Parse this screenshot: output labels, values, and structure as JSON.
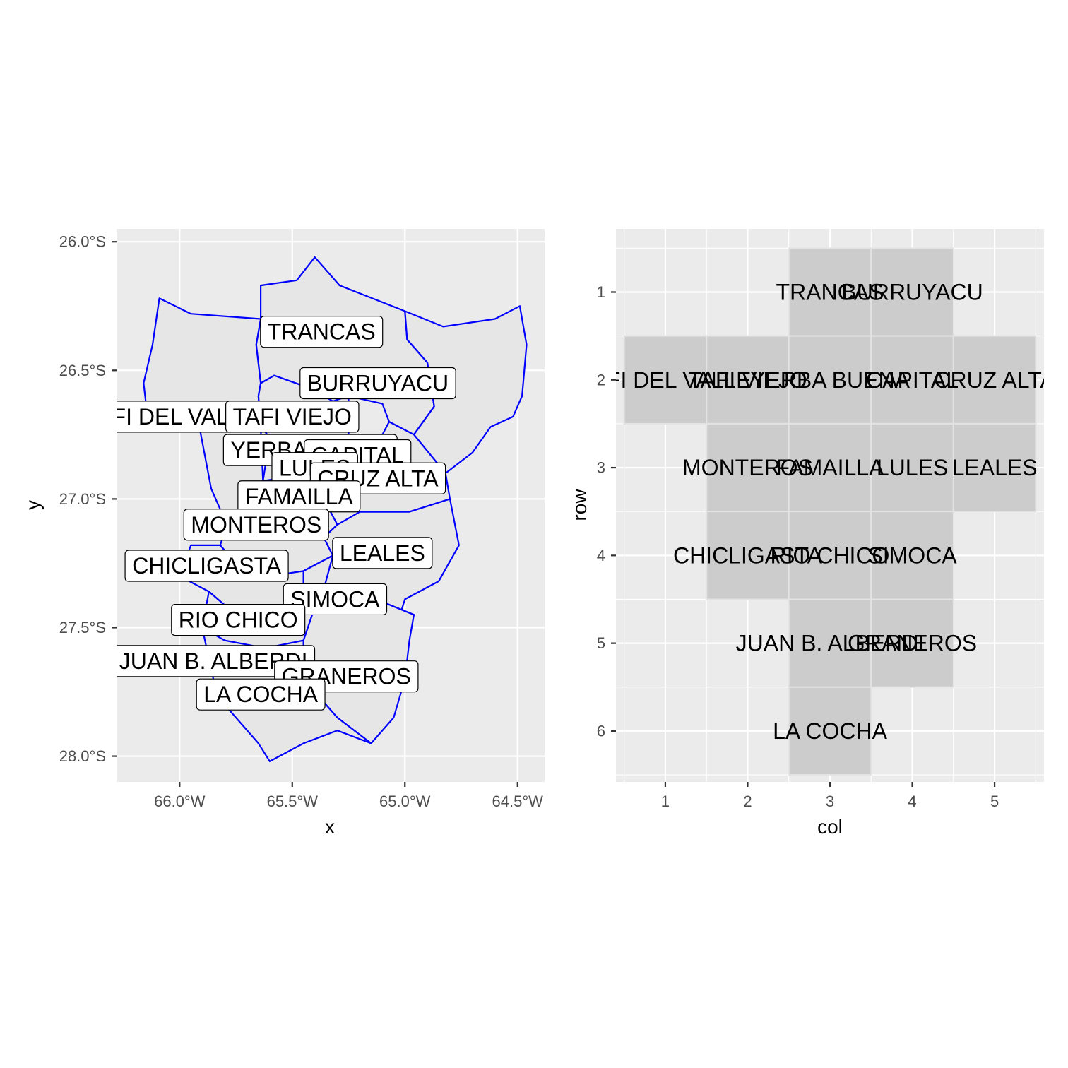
{
  "chart_data": [
    {
      "type": "map",
      "xlabel": "x",
      "ylabel": "y",
      "xlim": [
        -66.28,
        -64.38
      ],
      "ylim": [
        -28.1,
        -25.95
      ],
      "x_ticks": [
        -66.0,
        -65.5,
        -65.0,
        -64.5
      ],
      "x_tick_labels": [
        "66.0°W",
        "65.5°W",
        "65.0°W",
        "64.5°W"
      ],
      "y_ticks": [
        -26.0,
        -26.5,
        -27.0,
        -27.5,
        -28.0
      ],
      "y_tick_labels": [
        "26.0°S",
        "26.5°S",
        "27.0°S",
        "27.5°S",
        "28.0°S"
      ],
      "colors": {
        "panel": "#ebebeb",
        "grid": "#ffffff",
        "fill": "#e6e6e6",
        "border": "#0000ff"
      },
      "regions": [
        {
          "name": "TRANCAS",
          "label": [
            -65.37,
            -26.35
          ],
          "boundary": [
            [
              -65.64,
              -26.17
            ],
            [
              -65.48,
              -26.15
            ],
            [
              -65.4,
              -26.06
            ],
            [
              -65.29,
              -26.17
            ],
            [
              -65.0,
              -26.27
            ],
            [
              -64.99,
              -26.38
            ],
            [
              -64.9,
              -26.47
            ],
            [
              -64.87,
              -26.64
            ],
            [
              -64.96,
              -26.75
            ],
            [
              -65.07,
              -26.7
            ],
            [
              -65.1,
              -26.63
            ],
            [
              -65.25,
              -26.6
            ],
            [
              -65.42,
              -26.57
            ],
            [
              -65.58,
              -26.52
            ],
            [
              -65.64,
              -26.55
            ],
            [
              -65.66,
              -26.4
            ],
            [
              -65.64,
              -26.3
            ]
          ]
        },
        {
          "name": "BURRUYACU",
          "label": [
            -65.12,
            -26.55
          ],
          "boundary": [
            [
              -65.0,
              -26.27
            ],
            [
              -64.83,
              -26.33
            ],
            [
              -64.6,
              -26.3
            ],
            [
              -64.49,
              -26.25
            ],
            [
              -64.46,
              -26.4
            ],
            [
              -64.48,
              -26.6
            ],
            [
              -64.52,
              -26.68
            ],
            [
              -64.62,
              -26.72
            ],
            [
              -64.7,
              -26.82
            ],
            [
              -64.82,
              -26.9
            ],
            [
              -64.96,
              -26.75
            ],
            [
              -64.87,
              -26.64
            ],
            [
              -64.9,
              -26.47
            ],
            [
              -64.99,
              -26.38
            ]
          ]
        },
        {
          "name": "TAFI DEL VALLE",
          "label": [
            -66.04,
            -26.68
          ],
          "boundary": [
            [
              -66.09,
              -26.22
            ],
            [
              -66.12,
              -26.4
            ],
            [
              -66.16,
              -26.55
            ],
            [
              -66.14,
              -26.7
            ],
            [
              -66.0,
              -26.68
            ],
            [
              -65.91,
              -26.73
            ],
            [
              -65.86,
              -26.96
            ],
            [
              -65.79,
              -27.1
            ],
            [
              -65.68,
              -27.05
            ],
            [
              -65.63,
              -26.93
            ],
            [
              -65.64,
              -26.72
            ],
            [
              -65.65,
              -26.6
            ],
            [
              -65.64,
              -26.55
            ],
            [
              -65.66,
              -26.4
            ],
            [
              -65.64,
              -26.3
            ],
            [
              -65.95,
              -26.28
            ]
          ]
        },
        {
          "name": "TAFI VIEJO",
          "label": [
            -65.5,
            -26.68
          ],
          "boundary": [
            [
              -65.64,
              -26.55
            ],
            [
              -65.58,
              -26.52
            ],
            [
              -65.42,
              -26.57
            ],
            [
              -65.32,
              -26.62
            ],
            [
              -65.25,
              -26.6
            ],
            [
              -65.25,
              -26.78
            ],
            [
              -65.4,
              -26.82
            ],
            [
              -65.5,
              -26.8
            ],
            [
              -65.6,
              -26.76
            ],
            [
              -65.64,
              -26.72
            ],
            [
              -65.65,
              -26.6
            ]
          ]
        },
        {
          "name": "YERBA BUENA",
          "label": [
            -65.42,
            -26.81
          ],
          "boundary": [
            [
              -65.6,
              -26.76
            ],
            [
              -65.5,
              -26.8
            ],
            [
              -65.4,
              -26.82
            ],
            [
              -65.38,
              -26.92
            ],
            [
              -65.48,
              -26.94
            ],
            [
              -65.55,
              -26.92
            ],
            [
              -65.63,
              -26.93
            ]
          ]
        },
        {
          "name": "CAPITAL",
          "label": [
            -65.21,
            -26.83
          ],
          "boundary": [
            [
              -65.25,
              -26.78
            ],
            [
              -65.4,
              -26.82
            ],
            [
              -65.38,
              -26.92
            ],
            [
              -65.28,
              -26.9
            ],
            [
              -65.22,
              -26.88
            ],
            [
              -65.2,
              -26.84
            ]
          ]
        },
        {
          "name": "LULES",
          "label": [
            -65.4,
            -26.88
          ],
          "boundary": [
            [
              -65.63,
              -26.93
            ],
            [
              -65.55,
              -26.92
            ],
            [
              -65.48,
              -26.94
            ],
            [
              -65.38,
              -26.92
            ],
            [
              -65.36,
              -27.0
            ],
            [
              -65.45,
              -27.02
            ],
            [
              -65.58,
              -27.0
            ],
            [
              -65.68,
              -27.05
            ]
          ]
        },
        {
          "name": "CRUZ ALTA",
          "label": [
            -65.12,
            -26.92
          ],
          "boundary": [
            [
              -65.2,
              -26.84
            ],
            [
              -65.22,
              -26.88
            ],
            [
              -65.28,
              -26.9
            ],
            [
              -65.38,
              -26.92
            ],
            [
              -65.36,
              -27.0
            ],
            [
              -65.2,
              -27.05
            ],
            [
              -64.98,
              -27.05
            ],
            [
              -64.8,
              -27.0
            ],
            [
              -64.82,
              -26.9
            ],
            [
              -64.96,
              -26.75
            ],
            [
              -65.07,
              -26.7
            ],
            [
              -65.1,
              -26.75
            ]
          ]
        },
        {
          "name": "FAMAILLA",
          "label": [
            -65.47,
            -26.99
          ],
          "boundary": [
            [
              -65.68,
              -27.05
            ],
            [
              -65.58,
              -27.0
            ],
            [
              -65.45,
              -27.02
            ],
            [
              -65.36,
              -27.0
            ],
            [
              -65.3,
              -27.1
            ],
            [
              -65.36,
              -27.15
            ],
            [
              -65.5,
              -27.12
            ],
            [
              -65.6,
              -27.15
            ]
          ]
        },
        {
          "name": "MONTEROS",
          "label": [
            -65.66,
            -27.1
          ],
          "boundary": [
            [
              -65.79,
              -27.1
            ],
            [
              -65.68,
              -27.05
            ],
            [
              -65.6,
              -27.15
            ],
            [
              -65.5,
              -27.12
            ],
            [
              -65.36,
              -27.15
            ],
            [
              -65.32,
              -27.22
            ],
            [
              -65.45,
              -27.28
            ],
            [
              -65.6,
              -27.3
            ],
            [
              -65.75,
              -27.25
            ],
            [
              -65.82,
              -27.18
            ]
          ]
        },
        {
          "name": "LEALES",
          "label": [
            -65.1,
            -27.21
          ],
          "boundary": [
            [
              -65.36,
              -27.15
            ],
            [
              -65.3,
              -27.1
            ],
            [
              -65.2,
              -27.05
            ],
            [
              -64.98,
              -27.05
            ],
            [
              -64.8,
              -27.0
            ],
            [
              -64.76,
              -27.18
            ],
            [
              -64.85,
              -27.32
            ],
            [
              -65.0,
              -27.39
            ],
            [
              -65.04,
              -27.5
            ],
            [
              -65.05,
              -27.64
            ],
            [
              -65.2,
              -27.6
            ],
            [
              -65.32,
              -27.5
            ],
            [
              -65.36,
              -27.35
            ],
            [
              -65.32,
              -27.22
            ]
          ]
        },
        {
          "name": "CHICLIGASTA",
          "label": [
            -65.88,
            -27.26
          ],
          "boundary": [
            [
              -65.82,
              -27.18
            ],
            [
              -65.75,
              -27.25
            ],
            [
              -65.6,
              -27.3
            ],
            [
              -65.45,
              -27.28
            ],
            [
              -65.45,
              -27.4
            ],
            [
              -65.6,
              -27.45
            ],
            [
              -65.75,
              -27.45
            ],
            [
              -65.87,
              -27.36
            ],
            [
              -66.0,
              -27.3
            ],
            [
              -65.95,
              -27.18
            ]
          ]
        },
        {
          "name": "SIMOCA",
          "label": [
            -65.31,
            -27.39
          ],
          "boundary": [
            [
              -65.45,
              -27.28
            ],
            [
              -65.32,
              -27.22
            ],
            [
              -65.36,
              -27.35
            ],
            [
              -65.32,
              -27.5
            ],
            [
              -65.2,
              -27.6
            ],
            [
              -65.05,
              -27.64
            ],
            [
              -65.0,
              -27.5
            ],
            [
              -64.96,
              -27.45
            ],
            [
              -65.1,
              -27.4
            ],
            [
              -65.25,
              -27.35
            ],
            [
              -65.4,
              -27.42
            ],
            [
              -65.45,
              -27.4
            ]
          ]
        },
        {
          "name": "RIO CHICO",
          "label": [
            -65.74,
            -27.47
          ],
          "boundary": [
            [
              -65.87,
              -27.36
            ],
            [
              -65.75,
              -27.45
            ],
            [
              -65.6,
              -27.45
            ],
            [
              -65.45,
              -27.4
            ],
            [
              -65.4,
              -27.42
            ],
            [
              -65.45,
              -27.55
            ],
            [
              -65.62,
              -27.58
            ],
            [
              -65.8,
              -27.55
            ],
            [
              -65.9,
              -27.5
            ]
          ]
        },
        {
          "name": "JUAN B. ALBERDI",
          "label": [
            -65.85,
            -27.63
          ],
          "boundary": [
            [
              -65.9,
              -27.5
            ],
            [
              -65.8,
              -27.55
            ],
            [
              -65.62,
              -27.58
            ],
            [
              -65.45,
              -27.55
            ],
            [
              -65.45,
              -27.7
            ],
            [
              -65.62,
              -27.78
            ],
            [
              -65.8,
              -27.8
            ],
            [
              -65.85,
              -27.7
            ]
          ]
        },
        {
          "name": "GRANEROS",
          "label": [
            -65.26,
            -27.69
          ],
          "boundary": [
            [
              -65.45,
              -27.55
            ],
            [
              -65.4,
              -27.42
            ],
            [
              -65.25,
              -27.35
            ],
            [
              -65.1,
              -27.4
            ],
            [
              -64.96,
              -27.45
            ],
            [
              -64.98,
              -27.55
            ],
            [
              -65.0,
              -27.7
            ],
            [
              -65.05,
              -27.85
            ],
            [
              -65.15,
              -27.95
            ],
            [
              -65.3,
              -27.85
            ],
            [
              -65.45,
              -27.7
            ]
          ]
        },
        {
          "name": "LA COCHA",
          "label": [
            -65.64,
            -27.76
          ],
          "boundary": [
            [
              -65.8,
              -27.8
            ],
            [
              -65.62,
              -27.78
            ],
            [
              -65.45,
              -27.7
            ],
            [
              -65.3,
              -27.85
            ],
            [
              -65.15,
              -27.95
            ],
            [
              -65.3,
              -27.9
            ],
            [
              -65.45,
              -27.95
            ],
            [
              -65.6,
              -28.02
            ],
            [
              -65.65,
              -27.95
            ],
            [
              -65.72,
              -27.88
            ]
          ]
        }
      ]
    },
    {
      "type": "tile",
      "xlabel": "col",
      "ylabel": "row",
      "xlim": [
        0.4,
        5.6
      ],
      "ylim": [
        6.58,
        0.28
      ],
      "x_ticks": [
        1,
        2,
        3,
        4,
        5
      ],
      "x_tick_labels": [
        "1",
        "2",
        "3",
        "4",
        "5"
      ],
      "y_ticks": [
        1,
        2,
        3,
        4,
        5,
        6
      ],
      "y_tick_labels": [
        "1",
        "2",
        "3",
        "4",
        "5",
        "6"
      ],
      "colors": {
        "panel": "#ebebeb",
        "grid": "#ffffff",
        "tile": "#cccccc",
        "tile_border": "#e3e3e3"
      },
      "tiles": [
        {
          "name": "TRANCAS",
          "col": 3,
          "row": 1
        },
        {
          "name": "BURRUYACU",
          "col": 4,
          "row": 1
        },
        {
          "name": "TAFI DEL VALLE",
          "col": 1,
          "row": 2
        },
        {
          "name": "TAFI VIEJO",
          "col": 2,
          "row": 2
        },
        {
          "name": "YERBA BUENA",
          "col": 3,
          "row": 2
        },
        {
          "name": "CAPITAL",
          "col": 4,
          "row": 2
        },
        {
          "name": "CRUZ ALTA",
          "col": 5,
          "row": 2
        },
        {
          "name": "MONTEROS",
          "col": 2,
          "row": 3
        },
        {
          "name": "FAMAILLA",
          "col": 3,
          "row": 3
        },
        {
          "name": "LULES",
          "col": 4,
          "row": 3
        },
        {
          "name": "LEALES",
          "col": 5,
          "row": 3
        },
        {
          "name": "CHICLIGASTA",
          "col": 2,
          "row": 4
        },
        {
          "name": "RIO CHICO",
          "col": 3,
          "row": 4
        },
        {
          "name": "SIMOCA",
          "col": 4,
          "row": 4
        },
        {
          "name": "JUAN B. ALBERDI",
          "col": 3,
          "row": 5
        },
        {
          "name": "GRANEROS",
          "col": 4,
          "row": 5
        },
        {
          "name": "LA COCHA",
          "col": 3,
          "row": 6
        }
      ]
    }
  ]
}
